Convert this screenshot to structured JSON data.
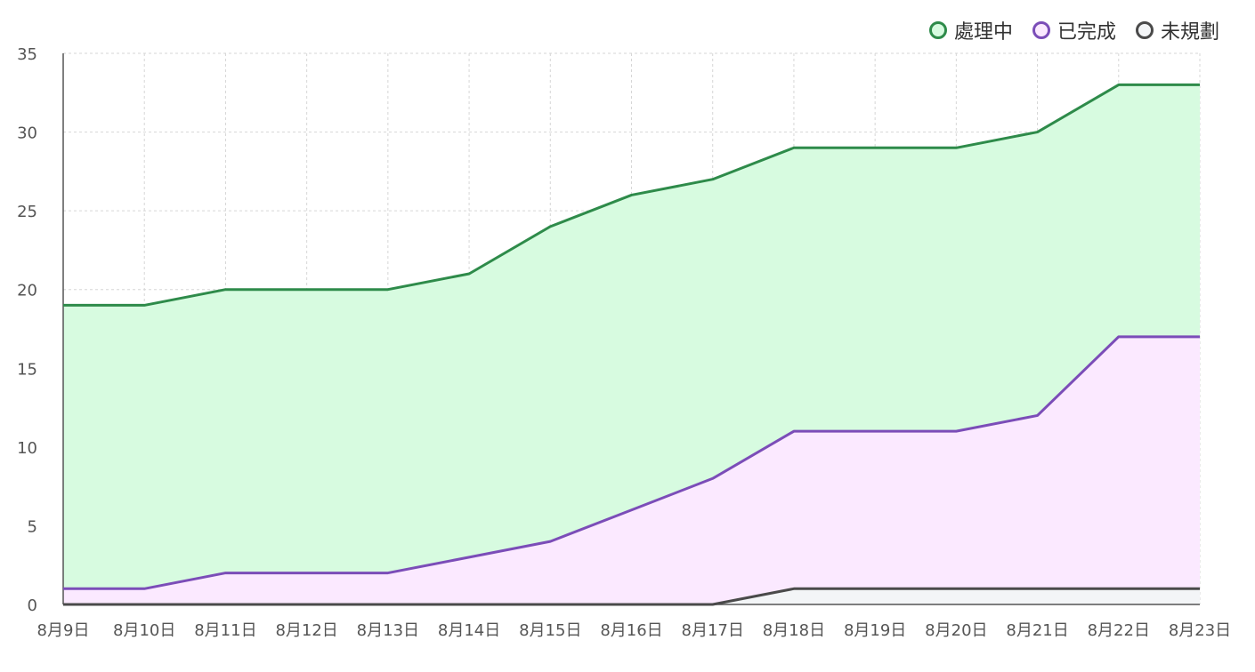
{
  "chart_data": {
    "type": "area",
    "stacked": true,
    "title": "",
    "xlabel": "",
    "ylabel": "",
    "categories": [
      "8月9日",
      "8月10日",
      "8月11日",
      "8月12日",
      "8月13日",
      "8月14日",
      "8月15日",
      "8月16日",
      "8月17日",
      "8月18日",
      "8月19日",
      "8月20日",
      "8月21日",
      "8月22日",
      "8月23日"
    ],
    "ylim": [
      0,
      35
    ],
    "yticks": [
      "0",
      "5",
      "10",
      "15",
      "20",
      "25",
      "30",
      "35"
    ],
    "grid": true,
    "legend_position": "top-right",
    "series": [
      {
        "name": "未規劃",
        "line_color": "#4a4a4a",
        "fill_color": "#f3f5f7",
        "values": [
          0,
          0,
          0,
          0,
          0,
          0,
          0,
          0,
          0,
          1,
          1,
          1,
          1,
          1,
          1
        ]
      },
      {
        "name": "已完成",
        "line_color": "#7b4db8",
        "fill_color": "#fbe9ff",
        "values": [
          1,
          1,
          2,
          2,
          2,
          3,
          4,
          6,
          8,
          10,
          10,
          10,
          11,
          16,
          16
        ]
      },
      {
        "name": "處理中",
        "line_color": "#2e8b4a",
        "fill_color": "#d7fbe0",
        "values": [
          18,
          18,
          18,
          18,
          18,
          18,
          20,
          20,
          19,
          18,
          18,
          18,
          18,
          16,
          16
        ]
      }
    ],
    "legend_order": [
      "處理中",
      "已完成",
      "未規劃"
    ]
  }
}
